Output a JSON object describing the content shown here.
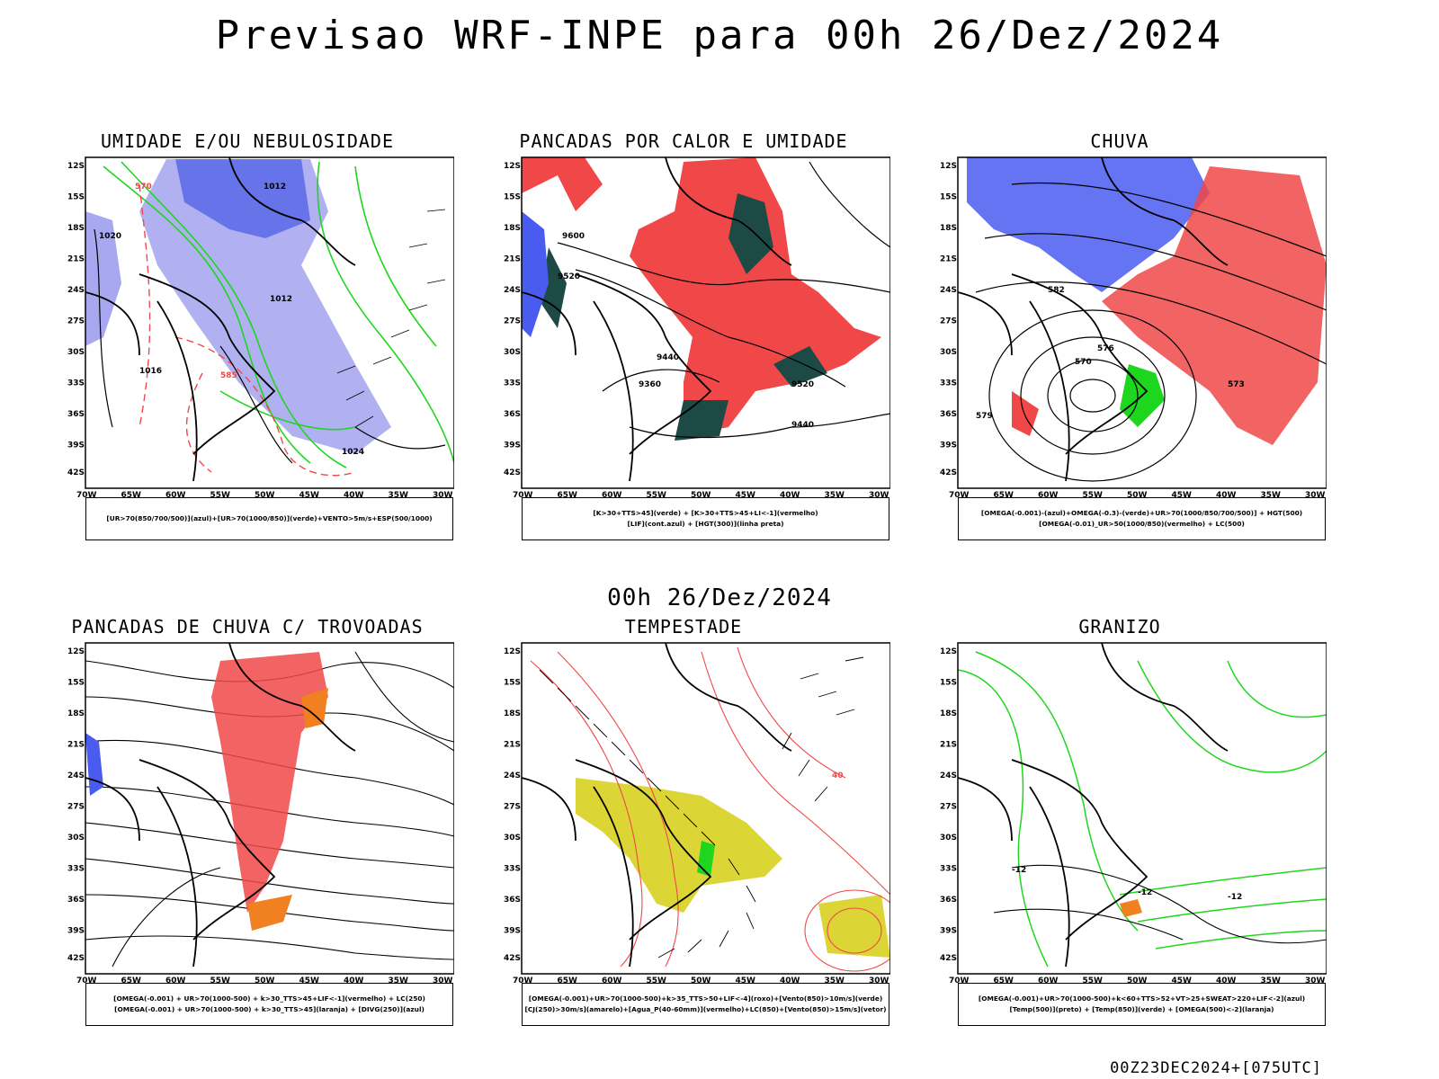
{
  "title": "Previsao WRF-INPE  para 00h 26/Dez/2024",
  "mid_label": "00h 26/Dez/2024",
  "footer": "00Z23DEC2024+[075UTC]",
  "axes": {
    "lat_labels": [
      "12S",
      "15S",
      "18S",
      "21S",
      "24S",
      "27S",
      "30S",
      "33S",
      "36S",
      "39S",
      "42S"
    ],
    "lon_labels": [
      "70W",
      "65W",
      "60W",
      "55W",
      "50W",
      "45W",
      "40W",
      "35W",
      "30W"
    ]
  },
  "colors": {
    "blue": "#4a5cf0",
    "lavender": "#a8a8f0",
    "green": "#1fd61f",
    "red": "#f04848",
    "dark_teal": "#1e4a46",
    "orange": "#f08020",
    "yellow": "#d8d020",
    "black": "#000000"
  },
  "panels": [
    {
      "id": "p1",
      "title": "UMIDADE E/OU NEBULOSIDADE",
      "legend": [
        "[UR>70(850/700/500)](azul)+[UR>70(1000/850)](verde)+VENTO>5m/s+ESP(500/1000)"
      ],
      "contour_labels": [
        "1012",
        "1012",
        "1016",
        "1020",
        "1024",
        "570",
        "585"
      ]
    },
    {
      "id": "p2",
      "title": "PANCADAS POR CALOR E UMIDADE",
      "legend": [
        "[K>30+TTS>45](verde) + [K>30+TTS>45+LI<-1](vermelho)",
        "[LIF](cont.azul) + [HGT(300)](linha preta)"
      ],
      "contour_labels": [
        "9600",
        "9520",
        "9440",
        "9360",
        "9520",
        "9440"
      ]
    },
    {
      "id": "p3",
      "title": "CHUVA",
      "legend": [
        "[OMEGA(-0.001)-(azul)+OMEGA(-0.3)-(verde)+UR>70(1000/850/700/500)] + HGT(500)",
        "[OMEGA(-0.01)_UR>50(1000/850)(vermelho) + LC(500)"
      ],
      "contour_labels": [
        "582",
        "579",
        "576",
        "570",
        "573"
      ]
    },
    {
      "id": "p4",
      "title": "PANCADAS DE CHUVA C/ TROVOADAS",
      "legend": [
        "[OMEGA(-0.001) + UR>70(1000-500) + k>30_TTS>45+LIF<-1](vermelho) + LC(250)",
        "[OMEGA(-0.001) + UR>70(1000-500) + k>30_TTS>45](laranja) + [DIVG(250)](azul)"
      ],
      "contour_labels": []
    },
    {
      "id": "p5",
      "title": "TEMPESTADE",
      "legend": [
        "[OMEGA(-0.001)+UR>70(1000-500)+k>35_TTS>50+LIF<-4](roxo)+[Vento(850)>10m/s](verde)",
        "[CJ(250)>30m/s](amarelo)+[Agua_P(40-60mm)](vermelho)+LC(850)+[Vento(850)>15m/s](vetor)"
      ],
      "contour_labels": [
        "40"
      ]
    },
    {
      "id": "p6",
      "title": "GRANIZO",
      "legend": [
        "[OMEGA(-0.001)+UR>70(1000-500)+k<60+TTS>52+VT>25+SWEAT>220+LIF<-2](azul)",
        "[Temp(500)](preto) + [Temp(850)](verde) + [OMEGA(500)<-2](laranja)"
      ],
      "contour_labels": [
        "-12",
        "-12",
        "-12"
      ]
    }
  ],
  "chart_data": [
    {
      "type": "map",
      "title": "UMIDADE E/OU NEBULOSIDADE",
      "lat_range": [
        "12S",
        "42S"
      ],
      "lon_range": [
        "70W",
        "30W"
      ],
      "fields": [
        "UR>70 (850/700/500)",
        "UR>70 (1000/850)",
        "Vento>5m/s",
        "Espessura 500/1000"
      ]
    },
    {
      "type": "map",
      "title": "PANCADAS POR CALOR E UMIDADE",
      "lat_range": [
        "12S",
        "42S"
      ],
      "lon_range": [
        "70W",
        "30W"
      ],
      "fields": [
        "K>30+TTS>45",
        "K>30+TTS>45+LI<-1",
        "LIF",
        "HGT(300)"
      ]
    },
    {
      "type": "map",
      "title": "CHUVA",
      "lat_range": [
        "12S",
        "42S"
      ],
      "lon_range": [
        "70W",
        "30W"
      ],
      "fields": [
        "OMEGA(-0.001)",
        "OMEGA(-0.3)",
        "UR>70",
        "HGT(500)",
        "LC(500)"
      ]
    },
    {
      "type": "map",
      "title": "PANCADAS DE CHUVA C/ TROVOADAS",
      "lat_range": [
        "12S",
        "42S"
      ],
      "lon_range": [
        "70W",
        "30W"
      ],
      "fields": [
        "LC(250)",
        "DIVG(250)"
      ]
    },
    {
      "type": "map",
      "title": "TEMPESTADE",
      "lat_range": [
        "12S",
        "42S"
      ],
      "lon_range": [
        "70W",
        "30W"
      ],
      "fields": [
        "CJ(250)>30m/s",
        "Agua_P(40-60mm)",
        "LC(850)",
        "Vento(850)>15m/s"
      ]
    },
    {
      "type": "map",
      "title": "GRANIZO",
      "lat_range": [
        "12S",
        "42S"
      ],
      "lon_range": [
        "70W",
        "30W"
      ],
      "fields": [
        "Temp(500)",
        "Temp(850)",
        "OMEGA(500)<-2"
      ]
    }
  ]
}
